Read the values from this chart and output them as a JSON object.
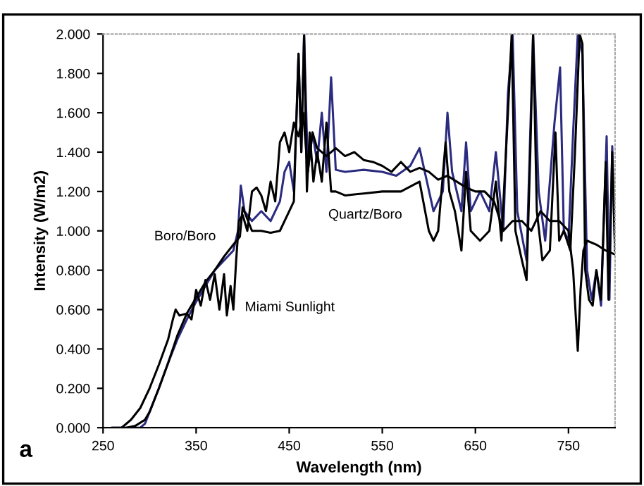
{
  "chart_data": {
    "type": "line",
    "xlabel": "Wavelength (nm)",
    "ylabel": "Intensity (W/m2)",
    "xlim": [
      250,
      800
    ],
    "xticks": [
      250,
      350,
      450,
      550,
      650,
      750
    ],
    "ylim": [
      0,
      2
    ],
    "yticks": [
      {
        "value": 0,
        "label": "0.000"
      },
      {
        "value": 0.2,
        "label": "0.200"
      },
      {
        "value": 0.4,
        "label": "0.400"
      },
      {
        "value": 0.6,
        "label": "0.600"
      },
      {
        "value": 0.8,
        "label": "0.800"
      },
      {
        "value": 1.0,
        "label": "1.000"
      },
      {
        "value": 1.2,
        "label": "1.200"
      },
      {
        "value": 1.4,
        "label": "1.400"
      },
      {
        "value": 1.6,
        "label": "1.600"
      },
      {
        "value": 1.8,
        "label": "1.800"
      },
      {
        "value": 2.0,
        "label": "2.000"
      }
    ],
    "grid": false,
    "marker": "none",
    "line_style": "solid",
    "series": [
      {
        "name": "Boro/Boro",
        "color": "#2b2b80",
        "x": [
          260,
          280,
          290,
          295,
          300,
          310,
          320,
          330,
          340,
          350,
          360,
          370,
          380,
          390,
          395,
          398,
          402,
          410,
          420,
          430,
          440,
          445,
          450,
          455,
          460,
          463,
          466,
          470,
          475,
          480,
          485,
          490,
          495,
          500,
          510,
          530,
          550,
          565,
          580,
          590,
          605,
          615,
          620,
          625,
          635,
          640,
          645,
          655,
          665,
          672,
          680,
          685,
          690,
          695,
          705,
          712,
          718,
          725,
          735,
          741,
          745,
          750,
          755,
          760,
          765,
          770,
          775,
          780,
          785,
          791,
          794,
          797,
          800
        ],
        "values": [
          0,
          0,
          0,
          0.02,
          0.08,
          0.2,
          0.33,
          0.45,
          0.55,
          0.64,
          0.72,
          0.8,
          0.85,
          0.9,
          1.0,
          1.23,
          1.1,
          1.05,
          1.1,
          1.05,
          1.15,
          1.3,
          1.35,
          1.2,
          1.9,
          1.4,
          2.0,
          1.3,
          1.5,
          1.35,
          1.6,
          1.3,
          1.78,
          1.31,
          1.3,
          1.31,
          1.3,
          1.28,
          1.33,
          1.42,
          1.1,
          1.2,
          1.6,
          1.3,
          1.1,
          1.45,
          1.1,
          1.2,
          1.1,
          1.4,
          1.0,
          1.7,
          2.0,
          1.1,
          0.85,
          2.0,
          1.2,
          0.95,
          1.55,
          1.83,
          1.0,
          0.95,
          1.5,
          2.0,
          1.9,
          0.8,
          0.65,
          0.8,
          0.62,
          1.48,
          0.65,
          1.43,
          0.9
        ]
      },
      {
        "name": "Quartz/Boro",
        "color": "#000000",
        "x": [
          260,
          275,
          285,
          295,
          300,
          310,
          320,
          330,
          340,
          350,
          360,
          370,
          380,
          390,
          397,
          400,
          410,
          420,
          430,
          440,
          450,
          455,
          460,
          463,
          466,
          469,
          472,
          476,
          480,
          485,
          490,
          495,
          500,
          510,
          530,
          550,
          570,
          590,
          600,
          605,
          610,
          618,
          622,
          628,
          635,
          640,
          645,
          655,
          665,
          672,
          678,
          685,
          689,
          693,
          700,
          705,
          709,
          712,
          716,
          722,
          730,
          736,
          740,
          745,
          752,
          757,
          762,
          765,
          768,
          772,
          776,
          780,
          785,
          790,
          793,
          797,
          800
        ],
        "values": [
          0,
          0,
          0.01,
          0.04,
          0.08,
          0.2,
          0.33,
          0.47,
          0.58,
          0.66,
          0.74,
          0.8,
          0.87,
          0.93,
          0.97,
          1.12,
          1.0,
          1.0,
          0.99,
          1.0,
          1.1,
          1.15,
          1.9,
          1.4,
          2.0,
          1.2,
          1.5,
          1.25,
          1.4,
          1.25,
          1.55,
          1.2,
          1.2,
          1.18,
          1.19,
          1.2,
          1.2,
          1.25,
          1.0,
          0.95,
          1.0,
          1.45,
          1.2,
          1.1,
          0.9,
          1.3,
          1.0,
          0.95,
          1.0,
          1.25,
          0.95,
          1.6,
          2.0,
          1.0,
          0.85,
          0.75,
          1.4,
          2.0,
          1.1,
          0.85,
          0.9,
          1.5,
          0.95,
          1.0,
          0.9,
          1.4,
          2.0,
          1.95,
          0.8,
          0.65,
          0.62,
          0.8,
          0.65,
          1.35,
          0.65,
          1.4,
          0.9
        ]
      },
      {
        "name": "Miami Sunlight",
        "color": "#000000",
        "x": [
          270,
          280,
          290,
          300,
          310,
          320,
          325,
          328,
          332,
          340,
          345,
          350,
          355,
          360,
          365,
          370,
          375,
          380,
          383,
          387,
          390,
          393,
          396,
          400,
          405,
          410,
          415,
          420,
          425,
          430,
          435,
          440,
          445,
          450,
          455,
          460,
          465,
          470,
          475,
          480,
          490,
          500,
          510,
          520,
          530,
          540,
          550,
          560,
          570,
          580,
          590,
          600,
          610,
          620,
          630,
          640,
          650,
          660,
          670,
          680,
          690,
          700,
          710,
          720,
          730,
          740,
          750,
          755,
          760,
          763,
          766,
          770,
          780,
          790,
          800
        ],
        "values": [
          0,
          0.04,
          0.1,
          0.2,
          0.32,
          0.45,
          0.55,
          0.6,
          0.57,
          0.58,
          0.55,
          0.7,
          0.62,
          0.75,
          0.65,
          0.78,
          0.6,
          0.78,
          0.57,
          0.72,
          0.6,
          0.85,
          1.05,
          1.08,
          1.0,
          1.2,
          1.22,
          1.18,
          1.1,
          1.25,
          1.15,
          1.45,
          1.5,
          1.4,
          1.55,
          1.48,
          1.6,
          1.3,
          1.5,
          1.42,
          1.38,
          1.42,
          1.38,
          1.4,
          1.36,
          1.35,
          1.33,
          1.3,
          1.35,
          1.3,
          1.32,
          1.3,
          1.26,
          1.28,
          1.25,
          1.22,
          1.2,
          1.2,
          1.15,
          1.0,
          1.05,
          1.05,
          1.0,
          1.1,
          1.05,
          1.05,
          1.0,
          0.8,
          0.39,
          0.7,
          0.9,
          0.95,
          0.93,
          0.9,
          0.88
        ]
      }
    ],
    "annotations": [
      "a"
    ]
  }
}
